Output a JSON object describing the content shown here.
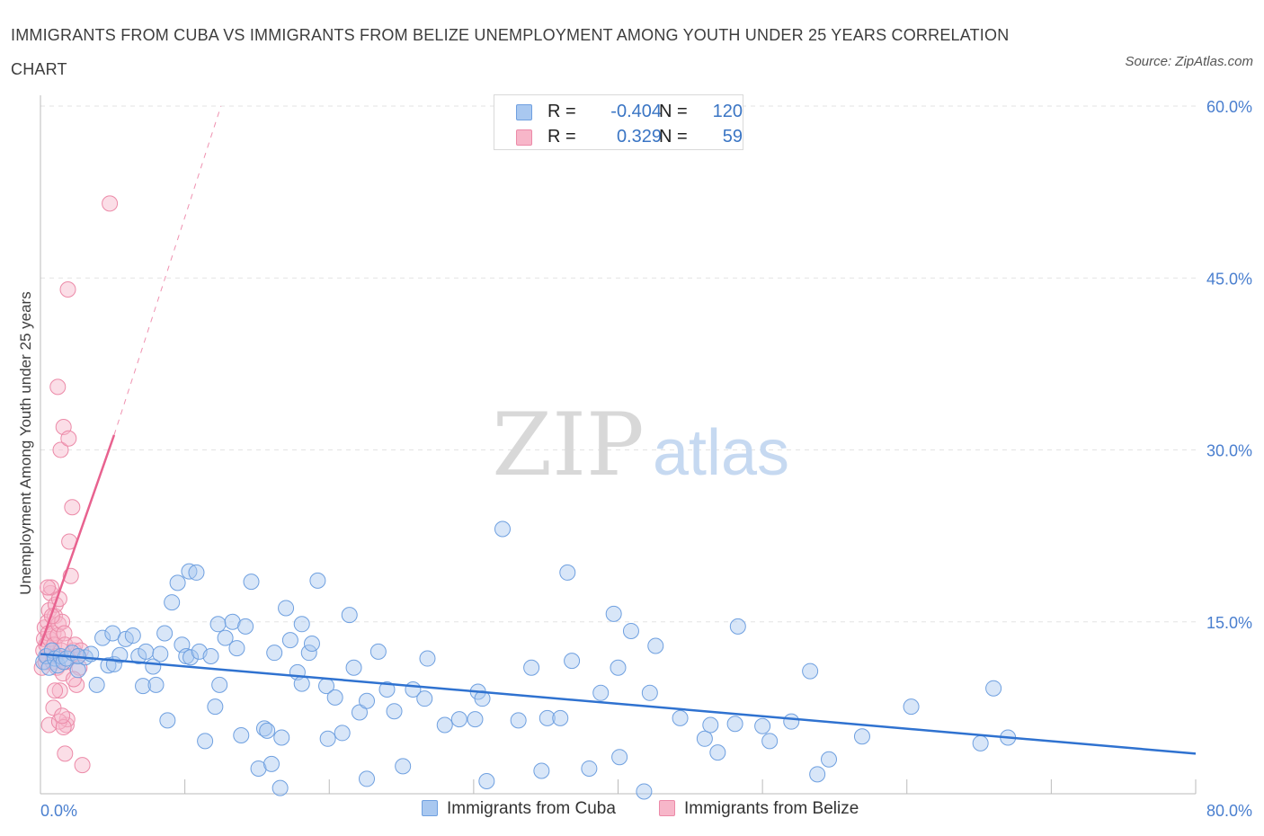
{
  "title": "IMMIGRANTS FROM CUBA VS IMMIGRANTS FROM BELIZE UNEMPLOYMENT AMONG YOUTH UNDER 25 YEARS CORRELATION CHART",
  "source": "Source: ZipAtlas.com",
  "watermark": {
    "zip": "ZIP",
    "atlas": "atlas"
  },
  "legend": {
    "rows": [
      {
        "r_label": "R =",
        "r_value": "-0.404",
        "n_label": "N =",
        "n_value": "120"
      },
      {
        "r_label": "R =",
        "r_value": "0.329",
        "n_label": "N =",
        "n_value": "59"
      }
    ]
  },
  "bottom_legend": {
    "cuba": "Immigrants from Cuba",
    "belize": "Immigrants from Belize"
  },
  "colors": {
    "cuba_fill": "#a9c8f0",
    "cuba_stroke": "#6fa0e0",
    "cuba_line": "#2f72d0",
    "belize_fill": "#f7b6c9",
    "belize_stroke": "#ec8aa8",
    "belize_line": "#e8628f",
    "tick_label": "#4a7fcf",
    "grid": "#e3e3e3"
  },
  "chart_data": {
    "type": "scatter",
    "title": "IMMIGRANTS FROM CUBA VS IMMIGRANTS FROM BELIZE UNEMPLOYMENT AMONG YOUTH UNDER 25 YEARS CORRELATION CHART",
    "xlabel": "",
    "ylabel": "Unemployment Among Youth under 25 years",
    "xlim": [
      0,
      80
    ],
    "ylim": [
      0,
      60
    ],
    "x_tick_labels": [
      "0.0%",
      "80.0%"
    ],
    "y_ticks": [
      15,
      30,
      45,
      60
    ],
    "y_tick_labels": [
      "15.0%",
      "30.0%",
      "45.0%",
      "60.0%"
    ],
    "grid": true,
    "legend_position": "top-center",
    "series": [
      {
        "name": "Immigrants from Cuba",
        "color": "#a9c8f0",
        "points": [
          [
            0.2,
            11.5
          ],
          [
            0.4,
            12.0
          ],
          [
            0.6,
            11.0
          ],
          [
            0.8,
            12.5
          ],
          [
            1.0,
            11.8
          ],
          [
            1.2,
            11.2
          ],
          [
            1.4,
            12.0
          ],
          [
            1.6,
            11.5
          ],
          [
            1.8,
            11.8
          ],
          [
            2.2,
            12.3
          ],
          [
            2.6,
            10.8
          ],
          [
            3.1,
            11.9
          ],
          [
            3.5,
            12.2
          ],
          [
            3.9,
            9.5
          ],
          [
            4.3,
            13.6
          ],
          [
            4.7,
            11.2
          ],
          [
            5.0,
            14.0
          ],
          [
            5.1,
            11.3
          ],
          [
            5.5,
            12.1
          ],
          [
            5.9,
            13.5
          ],
          [
            6.4,
            13.8
          ],
          [
            6.8,
            12.0
          ],
          [
            7.1,
            9.4
          ],
          [
            7.3,
            12.4
          ],
          [
            7.8,
            11.1
          ],
          [
            8.0,
            9.5
          ],
          [
            8.3,
            12.2
          ],
          [
            8.6,
            14.0
          ],
          [
            8.8,
            6.4
          ],
          [
            9.1,
            16.7
          ],
          [
            9.5,
            18.4
          ],
          [
            9.8,
            13.0
          ],
          [
            10.1,
            12.0
          ],
          [
            10.4,
            11.9
          ],
          [
            10.3,
            19.4
          ],
          [
            10.8,
            19.3
          ],
          [
            11.0,
            12.4
          ],
          [
            11.4,
            4.6
          ],
          [
            11.8,
            12.0
          ],
          [
            12.1,
            7.6
          ],
          [
            12.3,
            14.8
          ],
          [
            12.4,
            9.5
          ],
          [
            12.8,
            13.6
          ],
          [
            13.3,
            15.0
          ],
          [
            13.6,
            12.7
          ],
          [
            13.9,
            5.1
          ],
          [
            14.2,
            14.6
          ],
          [
            14.6,
            18.5
          ],
          [
            15.1,
            2.2
          ],
          [
            15.5,
            5.7
          ],
          [
            15.7,
            5.5
          ],
          [
            16.0,
            2.6
          ],
          [
            16.2,
            12.3
          ],
          [
            16.6,
            0.5
          ],
          [
            16.7,
            4.9
          ],
          [
            17.0,
            16.2
          ],
          [
            17.3,
            13.4
          ],
          [
            17.8,
            10.6
          ],
          [
            18.1,
            14.8
          ],
          [
            18.1,
            9.6
          ],
          [
            18.6,
            12.3
          ],
          [
            18.8,
            13.1
          ],
          [
            19.2,
            18.6
          ],
          [
            19.8,
            9.4
          ],
          [
            19.9,
            4.8
          ],
          [
            20.4,
            8.4
          ],
          [
            20.9,
            5.3
          ],
          [
            21.4,
            15.6
          ],
          [
            21.7,
            11.0
          ],
          [
            22.1,
            7.1
          ],
          [
            22.6,
            1.3
          ],
          [
            22.6,
            8.1
          ],
          [
            23.4,
            12.4
          ],
          [
            24.0,
            9.1
          ],
          [
            24.5,
            7.2
          ],
          [
            25.1,
            2.4
          ],
          [
            25.8,
            9.1
          ],
          [
            26.6,
            8.3
          ],
          [
            26.8,
            11.8
          ],
          [
            28.0,
            6.0
          ],
          [
            29.0,
            6.5
          ],
          [
            30.1,
            6.5
          ],
          [
            30.3,
            8.9
          ],
          [
            30.6,
            8.3
          ],
          [
            30.9,
            1.1
          ],
          [
            32.0,
            23.1
          ],
          [
            33.1,
            6.4
          ],
          [
            34.0,
            11.0
          ],
          [
            34.7,
            2.0
          ],
          [
            35.1,
            6.6
          ],
          [
            36.0,
            6.6
          ],
          [
            36.5,
            19.3
          ],
          [
            36.8,
            11.6
          ],
          [
            38.0,
            2.2
          ],
          [
            38.8,
            8.8
          ],
          [
            39.7,
            15.7
          ],
          [
            40.0,
            11.0
          ],
          [
            40.1,
            3.2
          ],
          [
            40.9,
            14.2
          ],
          [
            41.8,
            0.2
          ],
          [
            42.2,
            8.8
          ],
          [
            42.6,
            12.9
          ],
          [
            44.3,
            6.6
          ],
          [
            46.0,
            4.8
          ],
          [
            46.4,
            6.0
          ],
          [
            46.9,
            3.6
          ],
          [
            48.1,
            6.1
          ],
          [
            48.3,
            14.6
          ],
          [
            50.0,
            5.9
          ],
          [
            50.5,
            4.6
          ],
          [
            52.0,
            6.3
          ],
          [
            53.3,
            10.7
          ],
          [
            53.8,
            1.7
          ],
          [
            54.6,
            3.0
          ],
          [
            56.9,
            5.0
          ],
          [
            60.3,
            7.6
          ],
          [
            65.1,
            4.4
          ],
          [
            66.0,
            9.2
          ],
          [
            67.0,
            4.9
          ],
          [
            2.6,
            12.0
          ]
        ]
      },
      {
        "name": "Immigrants from Belize",
        "color": "#f7b6c9",
        "points": [
          [
            0.1,
            11.0
          ],
          [
            0.2,
            12.5
          ],
          [
            0.25,
            13.5
          ],
          [
            0.3,
            14.5
          ],
          [
            0.35,
            11.5
          ],
          [
            0.4,
            13.0
          ],
          [
            0.45,
            12.0
          ],
          [
            0.5,
            15.0
          ],
          [
            0.55,
            14.0
          ],
          [
            0.6,
            16.0
          ],
          [
            0.65,
            13.5
          ],
          [
            0.7,
            17.5
          ],
          [
            0.75,
            18.0
          ],
          [
            0.8,
            12.5
          ],
          [
            0.85,
            11.5
          ],
          [
            0.9,
            14.0
          ],
          [
            0.95,
            13.0
          ],
          [
            1.0,
            15.5
          ],
          [
            1.05,
            16.5
          ],
          [
            1.1,
            12.0
          ],
          [
            1.15,
            11.0
          ],
          [
            1.2,
            13.8
          ],
          [
            1.25,
            14.8
          ],
          [
            1.3,
            17.0
          ],
          [
            1.35,
            9.0
          ],
          [
            1.4,
            30.0
          ],
          [
            1.45,
            12.5
          ],
          [
            1.5,
            15.0
          ],
          [
            1.55,
            10.5
          ],
          [
            1.6,
            32.0
          ],
          [
            1.2,
            35.5
          ],
          [
            1.65,
            14.0
          ],
          [
            1.7,
            13.0
          ],
          [
            1.75,
            11.5
          ],
          [
            1.8,
            6.0
          ],
          [
            1.85,
            6.5
          ],
          [
            1.9,
            44.0
          ],
          [
            1.95,
            31.0
          ],
          [
            2.0,
            22.0
          ],
          [
            2.1,
            19.0
          ],
          [
            2.2,
            25.0
          ],
          [
            2.3,
            12.5
          ],
          [
            2.4,
            13.0
          ],
          [
            2.5,
            9.5
          ],
          [
            2.6,
            12.0
          ],
          [
            2.7,
            11.0
          ],
          [
            2.8,
            12.5
          ],
          [
            0.6,
            6.0
          ],
          [
            0.9,
            7.5
          ],
          [
            1.3,
            6.3
          ],
          [
            1.7,
            3.5
          ],
          [
            2.9,
            2.5
          ],
          [
            4.8,
            51.5
          ],
          [
            1.6,
            5.8
          ],
          [
            1.0,
            9.0
          ],
          [
            1.5,
            6.8
          ],
          [
            0.5,
            18.0
          ],
          [
            2.3,
            10.0
          ],
          [
            0.8,
            15.5
          ]
        ]
      }
    ],
    "trend_lines": [
      {
        "series": "Immigrants from Cuba",
        "x": [
          0,
          80
        ],
        "y": [
          12.2,
          3.5
        ]
      },
      {
        "series": "Immigrants from Belize",
        "x": [
          0,
          5.1
        ],
        "y": [
          12.9,
          31.3
        ],
        "extended_x": [
          5.1,
          12.5
        ],
        "extended_y": [
          31.3,
          60
        ]
      }
    ]
  }
}
